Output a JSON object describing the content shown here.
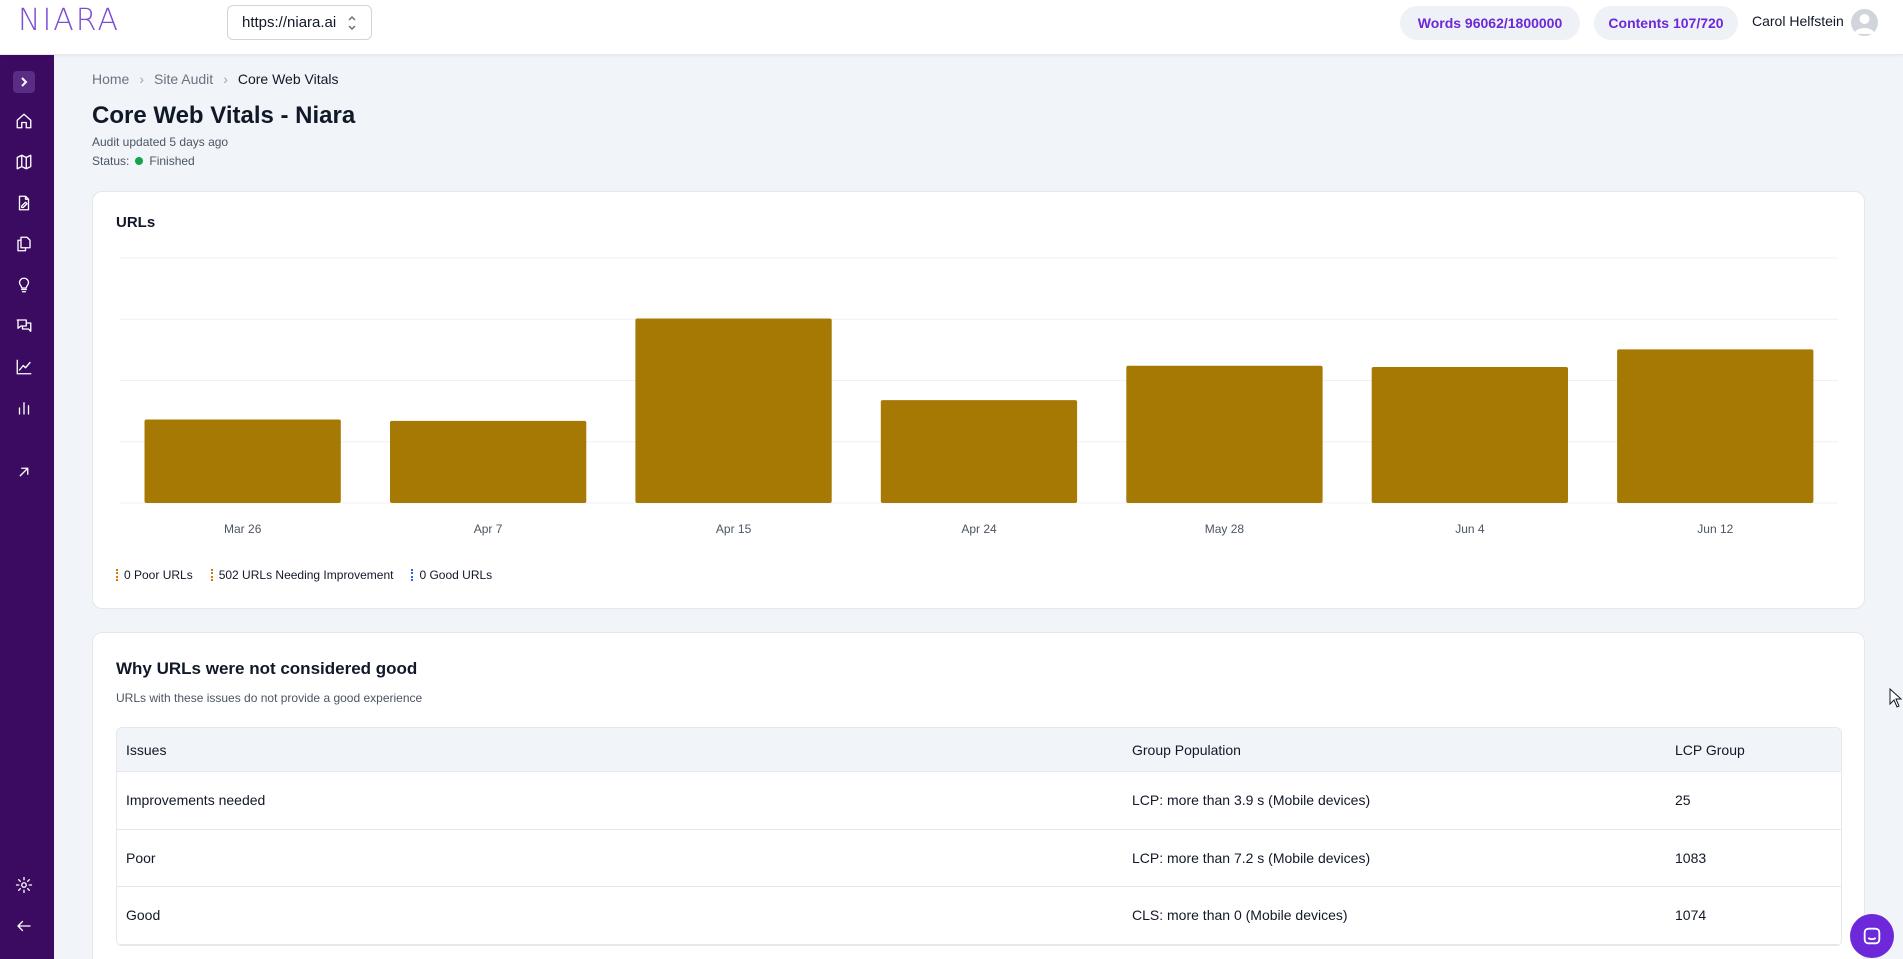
{
  "header": {
    "logo_text": "NIARA",
    "site_url": "https://niara.ai",
    "words_usage": "Words 96062/1800000",
    "contents_usage": "Contents 107/720",
    "user_name": "Carol Helfstein"
  },
  "sidebar": {
    "items": [
      {
        "icon": "chevron-right-icon"
      },
      {
        "icon": "home-icon"
      },
      {
        "icon": "map-icon"
      },
      {
        "icon": "edit-document-icon"
      },
      {
        "icon": "documents-icon"
      },
      {
        "icon": "lightbulb-icon"
      },
      {
        "icon": "chat-icon"
      },
      {
        "icon": "line-chart-icon"
      },
      {
        "icon": "bar-chart-icon"
      },
      {
        "icon": "external-link-icon"
      },
      {
        "icon": "gear-icon"
      },
      {
        "icon": "arrow-left-icon"
      }
    ]
  },
  "breadcrumb": {
    "items": [
      "Home",
      "Site Audit",
      "Core Web Vitals"
    ]
  },
  "page": {
    "title": "Core Web Vitals - Niara",
    "audit_updated": "Audit updated 5 days ago",
    "status_label": "Status:",
    "status_value": "Finished"
  },
  "urls_card": {
    "title": "URLs",
    "legend": [
      {
        "label": "0 Poor URLs",
        "color": "#d97706"
      },
      {
        "label": "502 URLs Needing Improvement",
        "color": "#d97706"
      },
      {
        "label": "0 Good URLs",
        "color": "#2563eb"
      }
    ]
  },
  "chart_data": {
    "type": "bar",
    "categories": [
      "Mar 26",
      "Apr 7",
      "Apr 15",
      "Apr 24",
      "May 28",
      "Jun 4",
      "Jun 12"
    ],
    "values": [
      341,
      335,
      753,
      420,
      560,
      555,
      627
    ],
    "ylim": [
      0,
      1000
    ],
    "bar_color": "#a67904",
    "grid": true
  },
  "issues_card": {
    "title": "Why URLs were not considered good",
    "subtitle": "URLs with these issues do not provide a good experience",
    "columns": [
      "Issues",
      "Group Population",
      "LCP Group"
    ],
    "rows": [
      [
        "Improvements needed",
        "LCP: more than 3.9 s (Mobile devices)",
        "25"
      ],
      [
        "Poor",
        "LCP: more than 7.2 s (Mobile devices)",
        "1083"
      ],
      [
        "Good",
        "CLS: more than 0 (Mobile devices)",
        "1074"
      ]
    ]
  }
}
